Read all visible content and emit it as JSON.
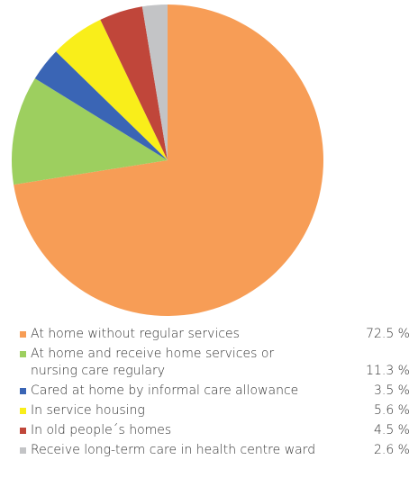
{
  "chart_data": {
    "type": "pie",
    "categories": [
      "At home without regular services",
      "At home and receive home services or\nnursing care regulary",
      "Cared at home by informal care allowance",
      "In service housing",
      "In old people´s homes",
      "Receive long-term care in health centre ward"
    ],
    "values": [
      72.5,
      11.3,
      3.5,
      5.6,
      4.5,
      2.6
    ],
    "value_labels": [
      "72.5 %",
      "11.3 %",
      "3.5 %",
      "5.6 %",
      "4.5 %",
      "2.6 %"
    ],
    "colors": [
      "#f79d56",
      "#9dcf5f",
      "#3a65b5",
      "#f9ee1a",
      "#c0463a",
      "#c3c4c6"
    ]
  }
}
